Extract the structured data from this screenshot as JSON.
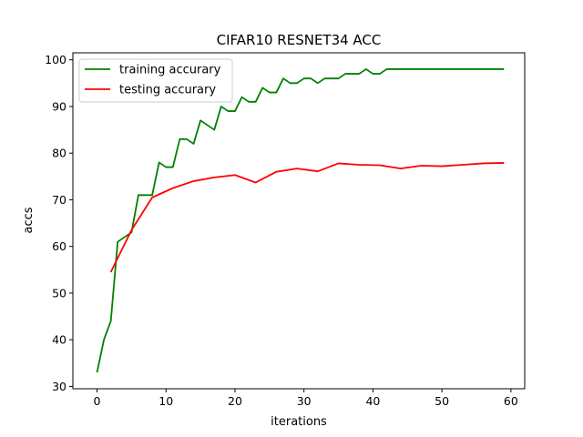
{
  "chart_data": {
    "type": "line",
    "title": "CIFAR10 RESNET34 ACC",
    "xlabel": "iterations",
    "ylabel": "accs",
    "xlim": [
      -3.5,
      62
    ],
    "ylim": [
      29.5,
      101.5
    ],
    "xticks": [
      0,
      10,
      20,
      30,
      40,
      50,
      60
    ],
    "yticks": [
      30,
      40,
      50,
      60,
      70,
      80,
      90,
      100
    ],
    "grid": false,
    "legend_position": "top-left",
    "series": [
      {
        "name": "training accurary",
        "color": "#008000",
        "x": [
          0,
          1,
          2,
          3,
          4,
          5,
          6,
          7,
          8,
          9,
          10,
          11,
          12,
          13,
          14,
          15,
          16,
          17,
          18,
          19,
          20,
          21,
          22,
          23,
          24,
          25,
          26,
          27,
          28,
          29,
          30,
          31,
          32,
          33,
          34,
          35,
          36,
          37,
          38,
          39,
          40,
          41,
          42,
          43,
          44,
          45,
          46,
          47,
          48,
          49,
          50,
          51,
          52,
          53,
          54,
          55,
          56,
          57,
          58,
          59
        ],
        "y": [
          33,
          40,
          44,
          61,
          62,
          63,
          71,
          71,
          71,
          78,
          77,
          77,
          83,
          83,
          82,
          87,
          86,
          85,
          90,
          89,
          89,
          92,
          91,
          91,
          94,
          93,
          93,
          96,
          95,
          95,
          96,
          96,
          95,
          96,
          96,
          96,
          97,
          97,
          97,
          98,
          97,
          97,
          98,
          98,
          98,
          98,
          98,
          98,
          98,
          98,
          98,
          98,
          98,
          98,
          98,
          98,
          98,
          98,
          98,
          98
        ]
      },
      {
        "name": "testing accurary",
        "color": "#ff0000",
        "x": [
          2,
          5,
          8,
          11,
          14,
          17,
          20,
          23,
          26,
          29,
          32,
          35,
          38,
          41,
          44,
          47,
          50,
          53,
          56,
          59
        ],
        "y": [
          54.5,
          63.5,
          70.5,
          72.5,
          74,
          74.8,
          75.3,
          73.7,
          76,
          76.7,
          76.1,
          77.8,
          77.5,
          77.4,
          76.7,
          77.3,
          77.2,
          77.5,
          77.8,
          77.9
        ]
      }
    ]
  }
}
